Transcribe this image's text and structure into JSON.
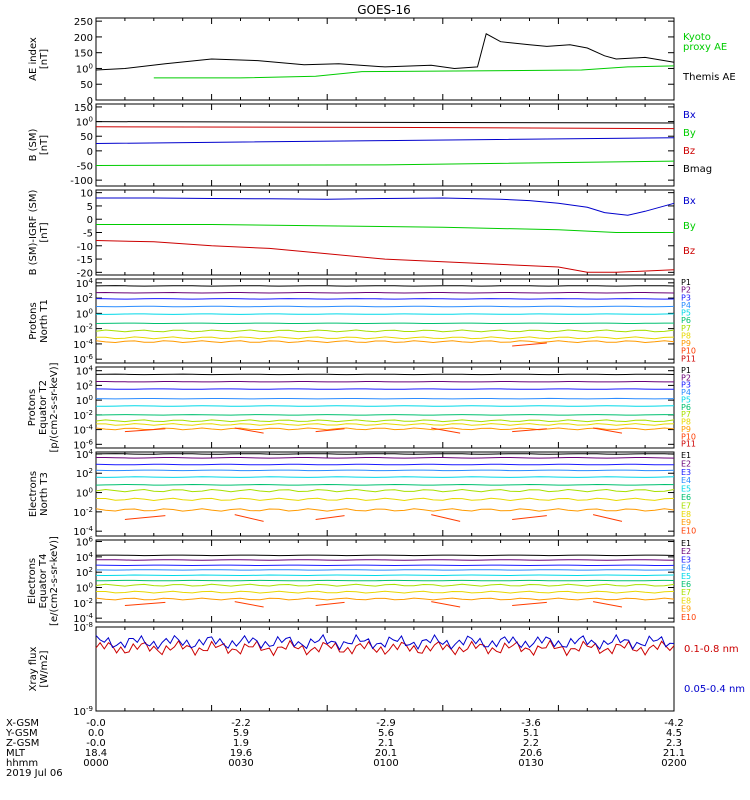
{
  "title": "GOES-16",
  "colors": {
    "black": "#000000",
    "green": "#00cc00",
    "blue": "#0000cc",
    "red": "#cc0000",
    "p1": "#000000",
    "p2": "#6a0078",
    "p3": "#1a1aff",
    "p4": "#2a8cff",
    "p5": "#00d8e8",
    "p6": "#00c070",
    "p7": "#a8e000",
    "p8": "#e8d800",
    "p9": "#ff9a00",
    "p10": "#ff3c00",
    "p11": "#cc0000"
  },
  "time_labels": [
    "0000",
    "0030",
    "0100",
    "0130",
    "0200"
  ],
  "ephemeris": {
    "row_labels": [
      "X-GSM",
      "Y-GSM",
      "Z-GSM",
      "MLT",
      "hhmm",
      "2019 Jul 06"
    ],
    "x_gsm": [
      "-0.0",
      "-2.2",
      "-2.9",
      "-3.6",
      "-4.2"
    ],
    "y_gsm": [
      "0.0",
      "5.9",
      "5.6",
      "5.1",
      "4.5"
    ],
    "z_gsm": [
      "-0.0",
      "1.9",
      "2.1",
      "2.2",
      "2.3"
    ],
    "mlt": [
      "18.4",
      "19.6",
      "20.1",
      "20.6",
      "21.1"
    ],
    "hhmm": [
      "0000",
      "0030",
      "0100",
      "0130",
      "0200"
    ]
  },
  "chart_data": [
    {
      "type": "line",
      "ylabel": "AE index\n[nT]",
      "yticks": [
        "0",
        "50",
        "100",
        "150",
        "200",
        "250"
      ],
      "ylim": [
        0,
        260
      ],
      "series": [
        {
          "name": "Kyoto\nproxy AE",
          "color": "green",
          "x": [
            0.1,
            0.25,
            0.38,
            0.46,
            0.62,
            0.84,
            0.92,
            1.0
          ],
          "y": [
            70,
            70,
            75,
            90,
            92,
            95,
            105,
            108
          ]
        },
        {
          "name": "Themis AE",
          "color": "black",
          "x": [
            0,
            0.05,
            0.12,
            0.2,
            0.28,
            0.36,
            0.42,
            0.5,
            0.58,
            0.62,
            0.66,
            0.675,
            0.7,
            0.75,
            0.78,
            0.82,
            0.85,
            0.88,
            0.9,
            0.95,
            1.0
          ],
          "y": [
            95,
            100,
            115,
            130,
            125,
            112,
            115,
            105,
            110,
            100,
            105,
            210,
            185,
            175,
            170,
            175,
            165,
            140,
            130,
            135,
            120
          ]
        }
      ]
    },
    {
      "type": "line",
      "ylabel": "B (SM)\n[nT]",
      "yticks": [
        "-100",
        "-50",
        "0",
        "50",
        "100",
        "150"
      ],
      "ylim": [
        -120,
        160
      ],
      "series": [
        {
          "name": "Bx",
          "color": "blue",
          "x": [
            0,
            0.5,
            1.0
          ],
          "y": [
            25,
            35,
            45
          ]
        },
        {
          "name": "By",
          "color": "green",
          "x": [
            0,
            0.5,
            1.0
          ],
          "y": [
            -50,
            -48,
            -35
          ]
        },
        {
          "name": "Bz",
          "color": "red",
          "x": [
            0,
            0.5,
            1.0
          ],
          "y": [
            82,
            80,
            76
          ]
        },
        {
          "name": "Bmag",
          "color": "black",
          "x": [
            0,
            0.5,
            1.0
          ],
          "y": [
            100,
            97,
            95
          ]
        }
      ]
    },
    {
      "type": "line",
      "ylabel": "B (SM)-IGRF (SM)\n[nT]",
      "yticks": [
        "-20",
        "-15",
        "-10",
        "-5",
        "0",
        "5",
        "10"
      ],
      "ylim": [
        -21,
        11
      ],
      "series": [
        {
          "name": "Bx",
          "color": "blue",
          "x": [
            0,
            0.1,
            0.2,
            0.3,
            0.4,
            0.5,
            0.6,
            0.7,
            0.75,
            0.8,
            0.85,
            0.88,
            0.92,
            0.95,
            1.0
          ],
          "y": [
            8,
            8,
            7.8,
            7.7,
            7.5,
            7.8,
            8,
            7.5,
            7,
            6,
            4.5,
            2.5,
            1.5,
            3,
            6
          ]
        },
        {
          "name": "By",
          "color": "green",
          "x": [
            0,
            0.2,
            0.4,
            0.6,
            0.8,
            0.9,
            1.0
          ],
          "y": [
            -2,
            -2,
            -2.5,
            -3,
            -4,
            -5,
            -5
          ]
        },
        {
          "name": "Bz",
          "color": "red",
          "x": [
            0,
            0.1,
            0.2,
            0.3,
            0.4,
            0.5,
            0.6,
            0.7,
            0.8,
            0.85,
            0.9,
            1.0
          ],
          "y": [
            -8,
            -8.5,
            -10,
            -11,
            -13,
            -15,
            -16,
            -17,
            -18,
            -20,
            -20,
            -19
          ]
        }
      ]
    },
    {
      "type": "line",
      "ylabel": "Protons\nNorth T1",
      "yticks": [
        "10-6",
        "10-4",
        "10-2",
        "100",
        "102",
        "104"
      ],
      "ylim": [
        -6.5,
        4.5
      ],
      "log": true,
      "channels": [
        "P1",
        "P2",
        "P3",
        "P4",
        "P5",
        "P6",
        "P7",
        "P8",
        "P9",
        "P10",
        "P11"
      ],
      "levels": [
        3.6,
        2.7,
        1.9,
        0.9,
        -0.1,
        -1.3,
        -2.3,
        -3.2,
        -3.7,
        null,
        null
      ]
    },
    {
      "type": "line",
      "ylabel": "Protons\nEquator T2\n[p/(cm2-s-sr-keV)]",
      "yticks": [
        "10-6",
        "10-4",
        "10-2",
        "100",
        "102",
        "104"
      ],
      "ylim": [
        -6.5,
        4.5
      ],
      "log": true,
      "channels": [
        "P1",
        "P2",
        "P3",
        "P4",
        "P5",
        "P6",
        "P7",
        "P8",
        "P9",
        "P10",
        "P11"
      ],
      "levels": [
        3.5,
        2.5,
        1.5,
        0.2,
        -0.8,
        -2.0,
        -2.8,
        -3.3,
        -3.9,
        null,
        null
      ]
    },
    {
      "type": "line",
      "ylabel": "Electrons\nNorth T3",
      "yticks": [
        "10-4",
        "10-2",
        "100",
        "102",
        "104"
      ],
      "ylim": [
        -4.5,
        4.2
      ],
      "log": true,
      "channels": [
        "E1",
        "E2",
        "E3",
        "E4",
        "E5",
        "E6",
        "E7",
        "E8",
        "E9",
        "E10"
      ],
      "levels": [
        4.0,
        3.6,
        2.9,
        2.3,
        1.6,
        0.8,
        0.2,
        -0.7,
        -1.8,
        null
      ]
    },
    {
      "type": "line",
      "ylabel": "Electrons\nEquator T4\n[e/(cm2-s-sr-keV)]",
      "yticks": [
        "10-4",
        "10-2",
        "100",
        "102",
        "104",
        "106"
      ],
      "ylim": [
        -4.5,
        6.2
      ],
      "log": true,
      "channels": [
        "E1",
        "E2",
        "E3",
        "E4",
        "E5",
        "E6",
        "E7",
        "E8",
        "E9",
        "E10"
      ],
      "levels": [
        4.2,
        3.6,
        2.9,
        2.3,
        1.6,
        0.9,
        0.3,
        -0.6,
        -1.5,
        null
      ]
    },
    {
      "type": "line",
      "ylabel": "Xray flux\n[W/m2]",
      "yticks": [
        "10-9",
        "10-8"
      ],
      "ylim": [
        -9,
        -8
      ],
      "log": true,
      "series": [
        {
          "name": "0.1-0.8 nm",
          "color": "red",
          "level": -8.25
        },
        {
          "name": "0.05-0.4 nm",
          "color": "blue",
          "level": -8.18
        }
      ]
    }
  ]
}
